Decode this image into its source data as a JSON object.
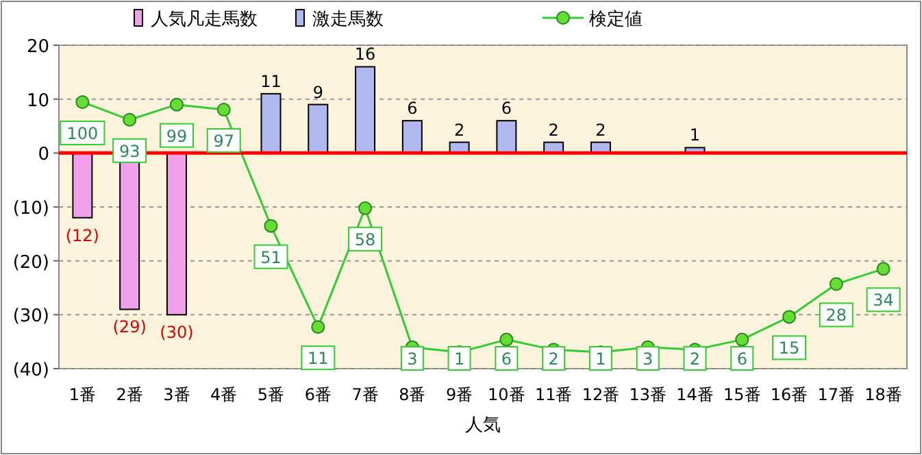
{
  "chart_data": {
    "type": "bar",
    "xlabel": "人気",
    "categories": [
      "1番",
      "2番",
      "3番",
      "4番",
      "5番",
      "6番",
      "7番",
      "8番",
      "9番",
      "10番",
      "11番",
      "12番",
      "13番",
      "14番",
      "15番",
      "16番",
      "17番",
      "18番"
    ],
    "ylim": [
      -40,
      20
    ],
    "yticks": [
      20,
      10,
      0,
      {
        "value": -10,
        "label": "(10)"
      },
      {
        "value": -20,
        "label": "(20)"
      },
      {
        "value": -30,
        "label": "(30)"
      },
      {
        "value": -40,
        "label": "(40)"
      }
    ],
    "y2lim": [
      -5.5,
      122.5
    ],
    "grid": "y",
    "legend": "top",
    "ref_lines": [
      {
        "axis": "y",
        "value": 0,
        "color": "#ff0000"
      }
    ],
    "series": [
      {
        "name": "人気凡走馬数",
        "color": "#f0a0e8",
        "values": [
          -12,
          -29,
          -30,
          null,
          null,
          null,
          null,
          null,
          null,
          null,
          null,
          null,
          null,
          null,
          null,
          null,
          null,
          null
        ],
        "value_labels": [
          "(12)",
          "(29)",
          "(30)",
          null,
          null,
          null,
          null,
          null,
          null,
          null,
          null,
          null,
          null,
          null,
          null,
          null,
          null,
          null
        ]
      },
      {
        "name": "激走馬数",
        "color": "#b0b8f0",
        "values": [
          null,
          null,
          null,
          null,
          11,
          9,
          16,
          6,
          2,
          6,
          2,
          2,
          null,
          1,
          null,
          null,
          null,
          null
        ],
        "value_labels": [
          null,
          null,
          null,
          null,
          "11",
          "9",
          "16",
          "6",
          "2",
          "6",
          "2",
          "2",
          null,
          "1",
          null,
          null,
          null,
          null
        ]
      },
      {
        "name": "検定値",
        "type": "line",
        "axis": "y2",
        "marker": "circle",
        "color": "#33cc33",
        "values": [
          100,
          93,
          99,
          97,
          51,
          11,
          58,
          3,
          1,
          6,
          2,
          1,
          3,
          2,
          6,
          15,
          28,
          34
        ],
        "value_labels": [
          "100",
          "93",
          "99",
          "97",
          "51",
          "11",
          "58",
          "3",
          "1",
          "6",
          "2",
          "1",
          "3",
          "2",
          "6",
          "15",
          "28",
          "34"
        ]
      }
    ]
  }
}
